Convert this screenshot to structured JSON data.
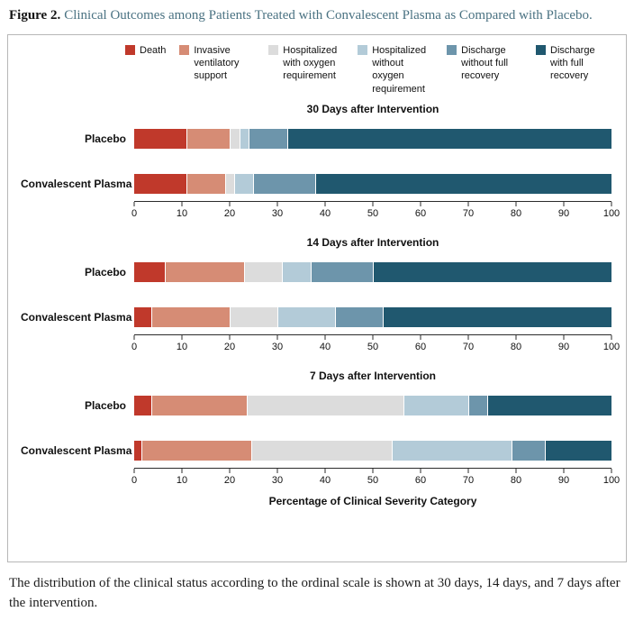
{
  "figure": {
    "label": "Figure 2.",
    "title": "Clinical Outcomes among Patients Treated with Convalescent Plasma as Compared with Placebo.",
    "caption": "The distribution of the clinical status according to the ordinal scale is shown at 30 days, 14 days, and 7 days after the intervention."
  },
  "chart_data": {
    "type": "bar",
    "stacked": true,
    "orientation": "horizontal",
    "xlabel": "Percentage of Clinical Severity Category",
    "xlim": [
      0,
      100
    ],
    "xticks": [
      0,
      10,
      20,
      30,
      40,
      50,
      60,
      70,
      80,
      90,
      100
    ],
    "legend_position": "top",
    "grid": false,
    "legend": [
      {
        "label": "Death",
        "color": "#c0392b"
      },
      {
        "label": "Invasive ventilatory support",
        "color": "#d68c75"
      },
      {
        "label": "Hospitalized with oxygen requirement",
        "color": "#dcdcdc"
      },
      {
        "label": "Hospitalized without oxygen requirement",
        "color": "#b3cbd8"
      },
      {
        "label": "Discharge without full recovery",
        "color": "#6d95ab"
      },
      {
        "label": "Discharge with full recovery",
        "color": "#20586f"
      }
    ],
    "panels": [
      {
        "title": "30 Days after Intervention",
        "rows": [
          {
            "label": "Placebo",
            "values": [
              11,
              9,
              2,
              2,
              8,
              68
            ]
          },
          {
            "label": "Convalescent Plasma",
            "values": [
              11,
              8,
              2,
              4,
              13,
              62
            ]
          }
        ]
      },
      {
        "title": "14 Days after Intervention",
        "rows": [
          {
            "label": "Placebo",
            "values": [
              6.5,
              16.5,
              8,
              6,
              13,
              50
            ]
          },
          {
            "label": "Convalescent Plasma",
            "values": [
              3.5,
              16.5,
              10,
              12,
              10,
              48
            ]
          }
        ]
      },
      {
        "title": "7 Days after Intervention",
        "rows": [
          {
            "label": "Placebo",
            "values": [
              3.5,
              20,
              33,
              13.5,
              4,
              26
            ]
          },
          {
            "label": "Convalescent Plasma",
            "values": [
              1.5,
              23,
              29.5,
              25,
              7,
              14
            ]
          }
        ]
      }
    ]
  }
}
